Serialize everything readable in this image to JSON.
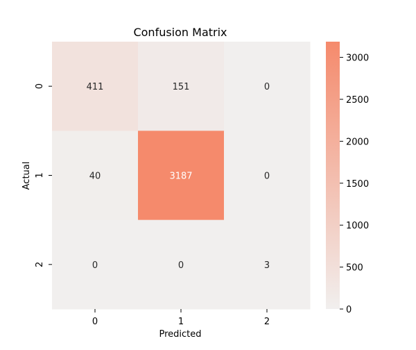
{
  "chart_data": {
    "type": "heatmap",
    "title": "Confusion Matrix",
    "xlabel": "Predicted",
    "ylabel": "Actual",
    "x_categories": [
      "0",
      "1",
      "2"
    ],
    "y_categories": [
      "0",
      "1",
      "2"
    ],
    "matrix": [
      [
        411,
        151,
        0
      ],
      [
        40,
        3187,
        0
      ],
      [
        0,
        0,
        3
      ]
    ],
    "colorbar": {
      "min": 0,
      "max": 3187,
      "ticks": [
        0,
        500,
        1000,
        1500,
        2000,
        2500,
        3000
      ],
      "tick_labels": [
        "0",
        "500",
        "1000",
        "1500",
        "2000",
        "2500",
        "3000"
      ],
      "color_low": "#f1efee",
      "color_high": "#f58a6c"
    },
    "grid": false,
    "legend": "colorbar-right"
  }
}
